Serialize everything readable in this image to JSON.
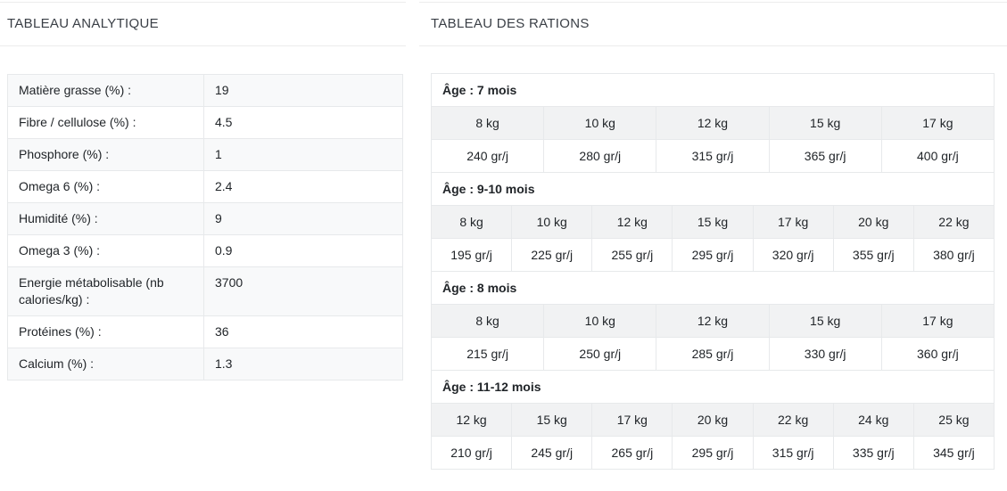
{
  "analytical": {
    "title": "TABLEAU ANALYTIQUE",
    "rows": [
      {
        "label": "Matière grasse (%) :",
        "value": "19"
      },
      {
        "label": "Fibre / cellulose (%) :",
        "value": "4.5"
      },
      {
        "label": "Phosphore (%) :",
        "value": "1"
      },
      {
        "label": "Omega 6 (%) :",
        "value": "2.4"
      },
      {
        "label": "Humidité (%) :",
        "value": "9"
      },
      {
        "label": "Omega 3 (%) :",
        "value": "0.9"
      },
      {
        "label": "Energie métabolisable (nb calories/kg) :",
        "value": "3700"
      },
      {
        "label": "Protéines (%) :",
        "value": "36"
      },
      {
        "label": "Calcium (%) :",
        "value": "1.3"
      }
    ]
  },
  "rations": {
    "title": "TABLEAU DES RATIONS",
    "sections": [
      {
        "age_label": "Âge : 7 mois",
        "weights": [
          "8 kg",
          "10 kg",
          "12 kg",
          "15 kg",
          "17 kg"
        ],
        "rations": [
          "240 gr/j",
          "280 gr/j",
          "315 gr/j",
          "365 gr/j",
          "400 gr/j"
        ]
      },
      {
        "age_label": "Âge : 9-10 mois",
        "weights": [
          "8 kg",
          "10 kg",
          "12 kg",
          "15 kg",
          "17 kg",
          "20 kg",
          "22 kg"
        ],
        "rations": [
          "195 gr/j",
          "225 gr/j",
          "255 gr/j",
          "295 gr/j",
          "320 gr/j",
          "355 gr/j",
          "380 gr/j"
        ]
      },
      {
        "age_label": "Âge : 8 mois",
        "weights": [
          "8 kg",
          "10 kg",
          "12 kg",
          "15 kg",
          "17 kg"
        ],
        "rations": [
          "215 gr/j",
          "250 gr/j",
          "285 gr/j",
          "330 gr/j",
          "360 gr/j"
        ]
      },
      {
        "age_label": "Âge : 11-12 mois",
        "weights": [
          "12 kg",
          "15 kg",
          "17 kg",
          "20 kg",
          "22 kg",
          "24 kg",
          "25 kg"
        ],
        "rations": [
          "210 gr/j",
          "245 gr/j",
          "265 gr/j",
          "295 gr/j",
          "315 gr/j",
          "335 gr/j",
          "345 gr/j"
        ]
      }
    ]
  },
  "colors": {
    "text": "#212529",
    "title": "#3a3f46",
    "divider": "#ececec",
    "border": "#e7e9eb",
    "stripe": "#f8f9fa",
    "headerbg": "#f1f2f3",
    "bg": "#ffffff"
  }
}
